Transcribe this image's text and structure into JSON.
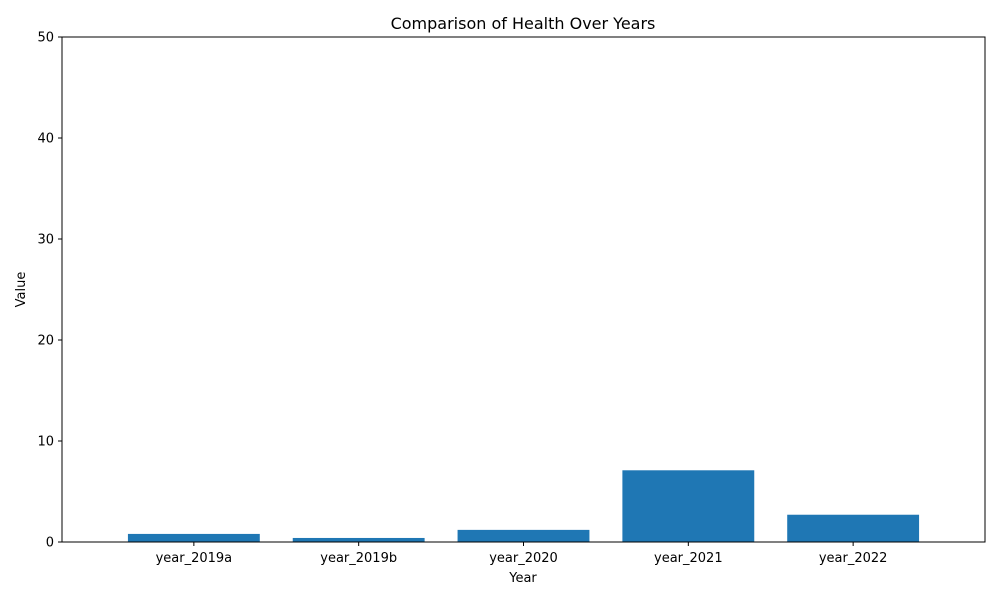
{
  "chart_data": {
    "type": "bar",
    "title": "Comparison of Health Over Years",
    "xlabel": "Year",
    "ylabel": "Value",
    "categories": [
      "year_2019a",
      "year_2019b",
      "year_2020",
      "year_2021",
      "year_2022"
    ],
    "values": [
      0.8,
      0.4,
      1.2,
      7.1,
      2.7
    ],
    "ylim": [
      0,
      50
    ],
    "yticks": [
      "0",
      "10",
      "20",
      "30",
      "40",
      "50"
    ],
    "grid": false,
    "legend": "none",
    "bar_color": "#1f77b4"
  }
}
